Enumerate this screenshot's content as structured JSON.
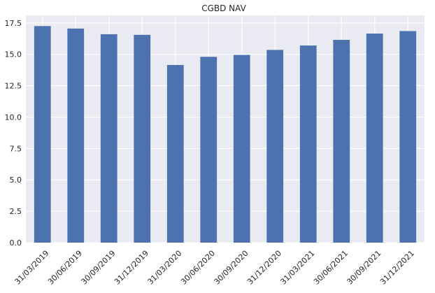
{
  "chart_data": {
    "type": "bar",
    "title": "CGBD NAV",
    "xlabel": "",
    "ylabel": "",
    "categories": [
      "31/03/2019",
      "30/06/2019",
      "30/09/2019",
      "31/12/2019",
      "31/03/2020",
      "30/06/2020",
      "30/09/2020",
      "31/12/2020",
      "31/03/2021",
      "30/06/2021",
      "30/09/2021",
      "31/12/2021"
    ],
    "values": [
      17.25,
      17.05,
      16.6,
      16.55,
      14.15,
      14.8,
      14.95,
      15.35,
      15.7,
      16.15,
      16.65,
      16.85
    ],
    "yticks": [
      "0.0",
      "2.5",
      "5.0",
      "7.5",
      "10.0",
      "12.5",
      "15.0",
      "17.5"
    ],
    "ylim": [
      0,
      18.1
    ],
    "grid": true,
    "legend": "none",
    "colors": {
      "bar": "#4c72b0",
      "plot_background": "#eaeaf2",
      "grid": "#ffffff",
      "text": "#262626"
    }
  }
}
